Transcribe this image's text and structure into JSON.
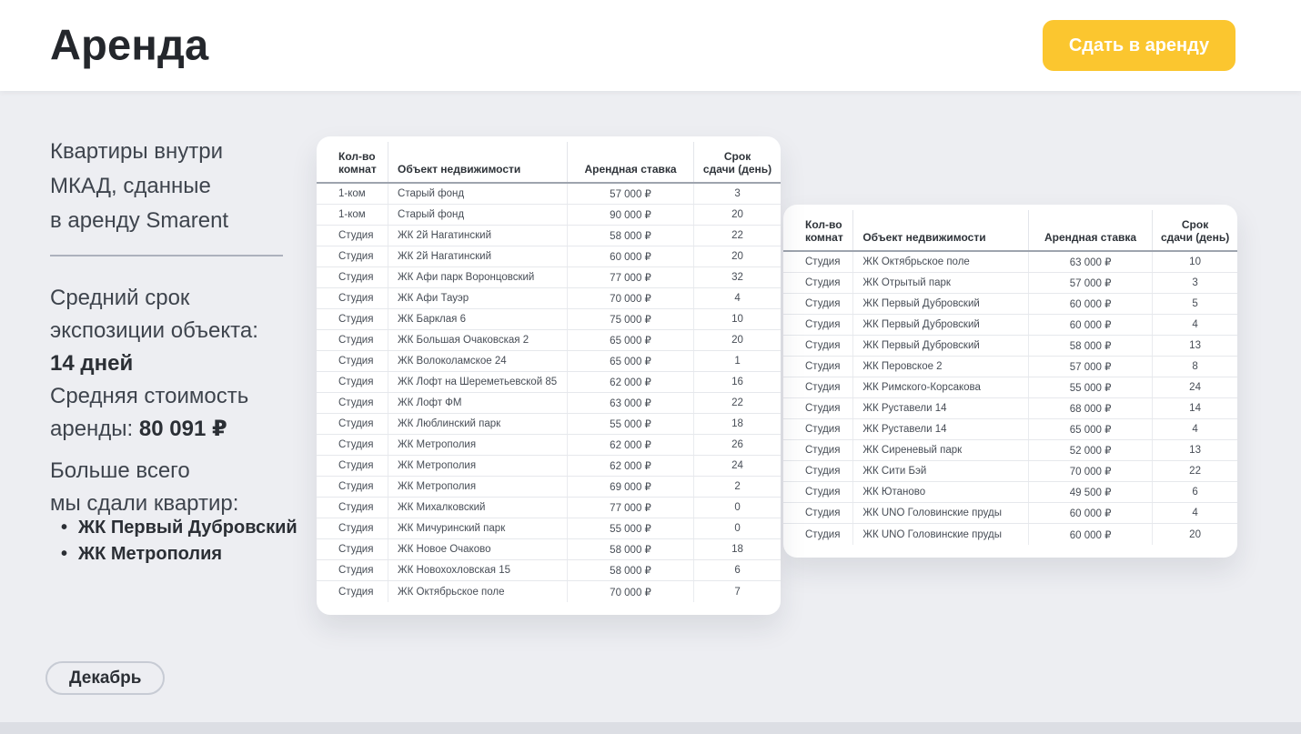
{
  "header": {
    "title": "Аренда",
    "cta_label": "Сдать в аренду"
  },
  "sidebar": {
    "intro": "Квартиры внутри\nМКАД, сданные\nв аренду Smarent",
    "stat_exposure_label": "Средний срок\nэкспозиции объекта:",
    "stat_exposure_value": "14 дней",
    "stat_price_label": "Средняя стоимость\nаренды:",
    "stat_price_value": "80 091 ₽",
    "most_rented_label": "Больше всего\nмы сдали квартир:",
    "most_rented": [
      {
        "label": "ЖК Первый Дубровский"
      },
      {
        "label": "ЖК Метрополия"
      }
    ],
    "month_button_label": "Декабрь"
  },
  "tables": {
    "columns": [
      "Кол-во\nкомнат",
      "Объект недвижимости",
      "Арендная ставка",
      "Срок\nсдачи (день)"
    ],
    "table1_rows": [
      [
        "1-ком",
        "Старый фонд",
        "57 000 ₽",
        "3"
      ],
      [
        "1-ком",
        "Старый фонд",
        "90 000 ₽",
        "20"
      ],
      [
        "Студия",
        "ЖК 2й Нагатинский",
        "58 000 ₽",
        "22"
      ],
      [
        "Студия",
        "ЖК 2й Нагатинский",
        "60 000 ₽",
        "20"
      ],
      [
        "Студия",
        "ЖК Афи парк Воронцовский",
        "77 000 ₽",
        "32"
      ],
      [
        "Студия",
        "ЖК Афи Тауэр",
        "70 000 ₽",
        "4"
      ],
      [
        "Студия",
        "ЖК Барклая 6",
        "75 000 ₽",
        "10"
      ],
      [
        "Студия",
        "ЖК Большая Очаковская 2",
        "65 000 ₽",
        "20"
      ],
      [
        "Студия",
        "ЖК Волоколамское 24",
        "65 000 ₽",
        "1"
      ],
      [
        "Студия",
        "ЖК Лофт на Шереметьевской 85",
        "62 000 ₽",
        "16"
      ],
      [
        "Студия",
        "ЖК Лофт ФМ",
        "63 000 ₽",
        "22"
      ],
      [
        "Студия",
        "ЖК Люблинский парк",
        "55 000 ₽",
        "18"
      ],
      [
        "Студия",
        "ЖК Метрополия",
        "62 000 ₽",
        "26"
      ],
      [
        "Студия",
        "ЖК Метрополия",
        "62 000 ₽",
        "24"
      ],
      [
        "Студия",
        "ЖК Метрополия",
        "69 000 ₽",
        "2"
      ],
      [
        "Студия",
        "ЖК Михалковский",
        "77 000 ₽",
        "0"
      ],
      [
        "Студия",
        "ЖК Мичуринский парк",
        "55 000 ₽",
        "0"
      ],
      [
        "Студия",
        "ЖК Новое Очаково",
        "58 000 ₽",
        "18"
      ],
      [
        "Студия",
        "ЖК Новохохловская 15",
        "58 000 ₽",
        "6"
      ],
      [
        "Студия",
        "ЖК Октябрьское поле",
        "70 000 ₽",
        "7"
      ]
    ],
    "table2_rows": [
      [
        "Студия",
        "ЖК Октябрьское поле",
        "63 000 ₽",
        "10"
      ],
      [
        "Студия",
        "ЖК Отрытый парк",
        "57 000 ₽",
        "3"
      ],
      [
        "Студия",
        "ЖК Первый Дубровский",
        "60 000 ₽",
        "5"
      ],
      [
        "Студия",
        "ЖК Первый Дубровский",
        "60 000 ₽",
        "4"
      ],
      [
        "Студия",
        "ЖК Первый Дубровский",
        "58 000 ₽",
        "13"
      ],
      [
        "Студия",
        "ЖК Перовское 2",
        "57 000 ₽",
        "8"
      ],
      [
        "Студия",
        "ЖК Римского-Корсакова",
        "55 000 ₽",
        "24"
      ],
      [
        "Студия",
        "ЖК Руставели 14",
        "68 000 ₽",
        "14"
      ],
      [
        "Студия",
        "ЖК Руставели 14",
        "65 000 ₽",
        "4"
      ],
      [
        "Студия",
        "ЖК Сиреневый парк",
        "52 000 ₽",
        "13"
      ],
      [
        "Студия",
        "ЖК Сити Бэй",
        "70 000 ₽",
        "22"
      ],
      [
        "Студия",
        "ЖК Ютаново",
        "49 500 ₽",
        "6"
      ],
      [
        "Студия",
        "ЖК UNO Головинские пруды",
        "60 000 ₽",
        "4"
      ],
      [
        "Студия",
        "ЖК UNO Головинские пруды",
        "60 000 ₽",
        "20"
      ]
    ]
  },
  "colors": {
    "accent_yellow": "#FBC62F",
    "page_background": "#EDEEF2",
    "footer_strip": "#DCDEE4",
    "text_dark": "#2B2F35"
  }
}
